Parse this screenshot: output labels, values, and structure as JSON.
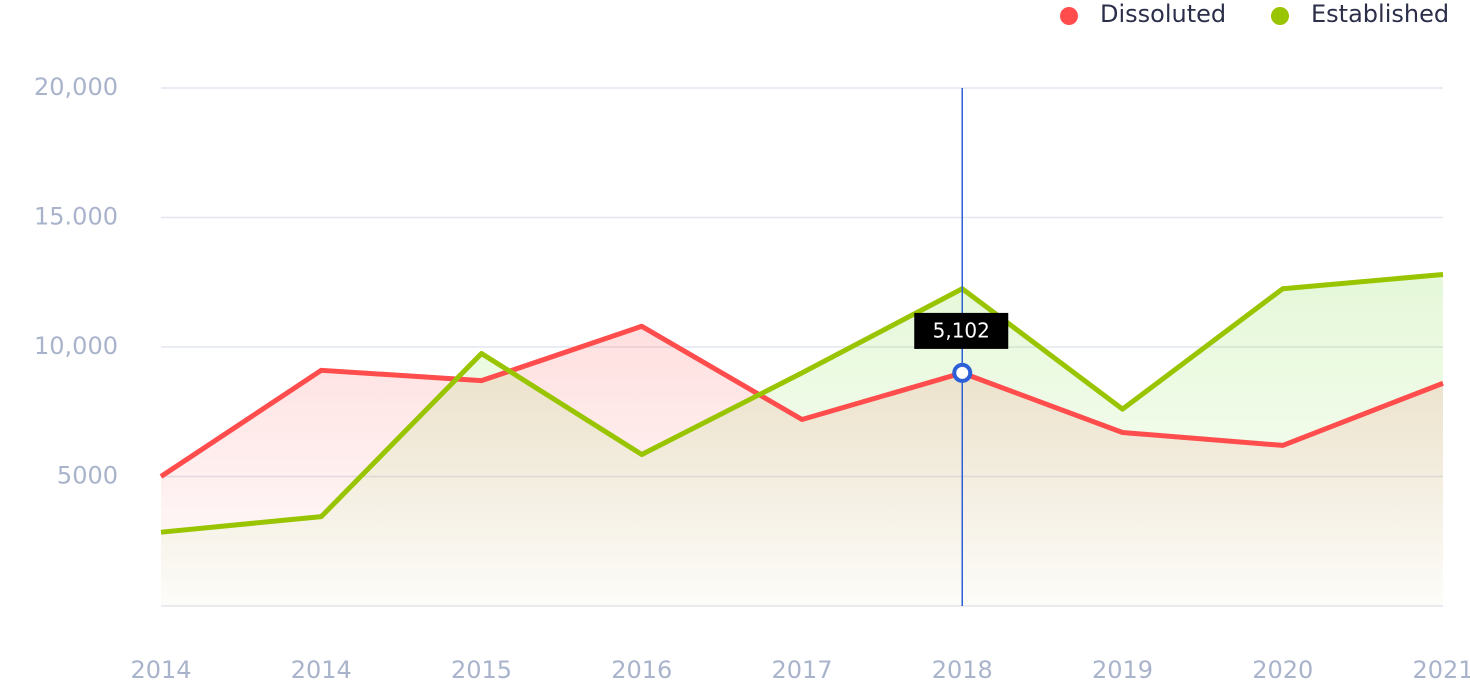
{
  "chart_data": {
    "type": "line",
    "categories": [
      "2014",
      "2014",
      "2015",
      "2016",
      "2017",
      "2018",
      "2019",
      "2020",
      "2021"
    ],
    "series": [
      {
        "name": "Dissoluted",
        "color": "#ff4d4d",
        "values": [
          5000,
          9100,
          8700,
          10800,
          7200,
          9000,
          6700,
          6200,
          8600
        ]
      },
      {
        "name": "Established",
        "color": "#99c400",
        "values": [
          2850,
          3450,
          9750,
          5850,
          9000,
          12250,
          7600,
          12250,
          12800
        ]
      }
    ],
    "ylim": [
      0,
      20000
    ],
    "yticks": [
      {
        "value": 20000,
        "label": "20,000"
      },
      {
        "value": 15000,
        "label": "15.000"
      },
      {
        "value": 10000,
        "label": "10,000"
      },
      5000
    ],
    "grid": true,
    "legend": "top-right",
    "annotation": "5,102"
  }
}
